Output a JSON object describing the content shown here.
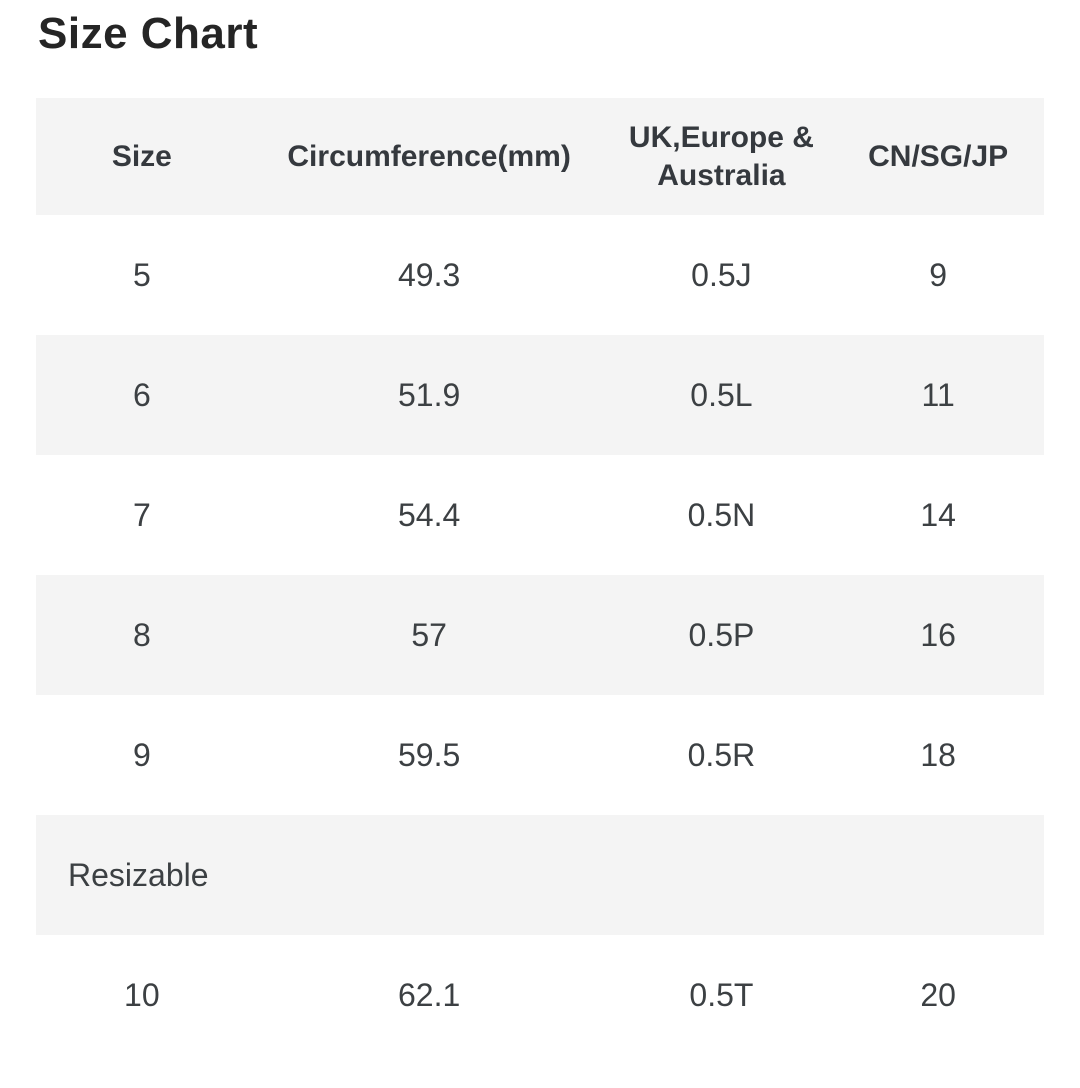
{
  "page": {
    "title": "Size Chart"
  },
  "colors": {
    "stripe_bg": "#f4f4f4",
    "row_bg": "#ffffff",
    "header_text": "#35393e",
    "cell_text": "#3c4043",
    "title_text": "#252525"
  },
  "table": {
    "columns": [
      {
        "key": "size",
        "label": "Size"
      },
      {
        "key": "circumference",
        "label": "Circumference(mm)"
      },
      {
        "key": "uk_eu_au",
        "label": "UK,Europe & Australia"
      },
      {
        "key": "cn_sg_jp",
        "label": "CN/SG/JP"
      }
    ],
    "rows": [
      {
        "size": "5",
        "circumference": "49.3",
        "uk_eu_au": "0.5J",
        "cn_sg_jp": "9"
      },
      {
        "size": "6",
        "circumference": "51.9",
        "uk_eu_au": "0.5L",
        "cn_sg_jp": "11"
      },
      {
        "size": "7",
        "circumference": "54.4",
        "uk_eu_au": "0.5N",
        "cn_sg_jp": "14"
      },
      {
        "size": "8",
        "circumference": "57",
        "uk_eu_au": "0.5P",
        "cn_sg_jp": "16"
      },
      {
        "size": "9",
        "circumference": "59.5",
        "uk_eu_au": "0.5R",
        "cn_sg_jp": "18"
      }
    ],
    "spanner_row": {
      "label": "Resizable"
    },
    "last_row": {
      "size": "10",
      "circumference": "62.1",
      "uk_eu_au": "0.5T",
      "cn_sg_jp": "20"
    }
  }
}
